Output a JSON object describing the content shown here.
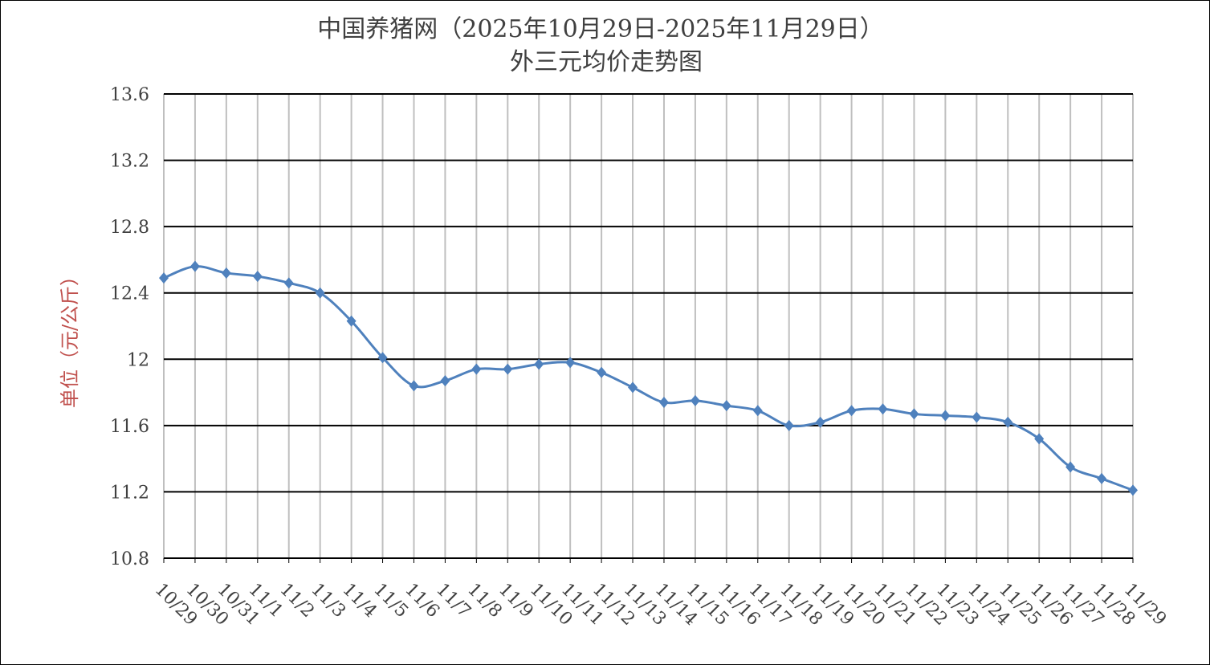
{
  "chart_data": {
    "type": "line",
    "title": "中国养猪网（2025年10月29日-2025年11月29日）",
    "subtitle": "外三元均价走势图",
    "xlabel": "",
    "ylabel": "单位（元/公斤）",
    "ylim": [
      10.8,
      13.6
    ],
    "yticks": [
      "10.8",
      "11.2",
      "11.6",
      "12",
      "12.4",
      "12.8",
      "13.2",
      "13.6"
    ],
    "grid": true,
    "line_color": "#4f81bd",
    "marker": "diamond",
    "smooth": true,
    "x": [
      "10/29",
      "10/30",
      "10/31",
      "11/1",
      "11/2",
      "11/3",
      "11/4",
      "11/5",
      "11/6",
      "11/7",
      "11/8",
      "11/9",
      "11/10",
      "11/11",
      "11/12",
      "11/13",
      "11/14",
      "11/15",
      "11/16",
      "11/17",
      "11/18",
      "11/19",
      "11/20",
      "11/21",
      "11/22",
      "11/23",
      "11/24",
      "11/25",
      "11/26",
      "11/27",
      "11/28",
      "11/29"
    ],
    "values": [
      12.49,
      12.56,
      12.52,
      12.5,
      12.46,
      12.4,
      12.23,
      12.01,
      11.84,
      11.87,
      11.94,
      11.94,
      11.97,
      11.98,
      11.92,
      11.83,
      11.74,
      11.75,
      11.72,
      11.69,
      11.6,
      11.62,
      11.69,
      11.7,
      11.67,
      11.66,
      11.65,
      11.62,
      11.52,
      11.35,
      11.28,
      11.21
    ]
  }
}
